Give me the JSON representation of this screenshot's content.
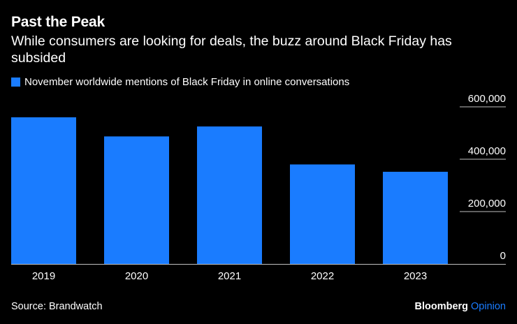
{
  "header": {
    "title": "Past the Peak",
    "subtitle": "While consumers are looking for deals, the buzz around Black Friday has subsided"
  },
  "legend": {
    "label": "November worldwide mentions of Black Friday in online conversations",
    "color": "#1a7cff"
  },
  "footer": {
    "source": "Source: Brandwatch",
    "brand_name": "Bloomberg",
    "brand_suffix": "Opinion",
    "brand_suffix_color": "#1a7cff"
  },
  "chart_data": {
    "type": "bar",
    "title": "Past the Peak",
    "categories": [
      "2019",
      "2020",
      "2021",
      "2022",
      "2023"
    ],
    "series": [
      {
        "name": "November worldwide mentions of Black Friday in online conversations",
        "values": [
          560000,
          487000,
          525000,
          380000,
          352000
        ],
        "color": "#1a7cff"
      }
    ],
    "y_ticks": [
      0,
      200000,
      400000,
      600000
    ],
    "y_tick_labels": [
      "0",
      "200,000",
      "400,000",
      "600,000"
    ],
    "ylim": [
      0,
      600000
    ],
    "y_axis_position": "right",
    "xlabel": "",
    "ylabel": ""
  }
}
